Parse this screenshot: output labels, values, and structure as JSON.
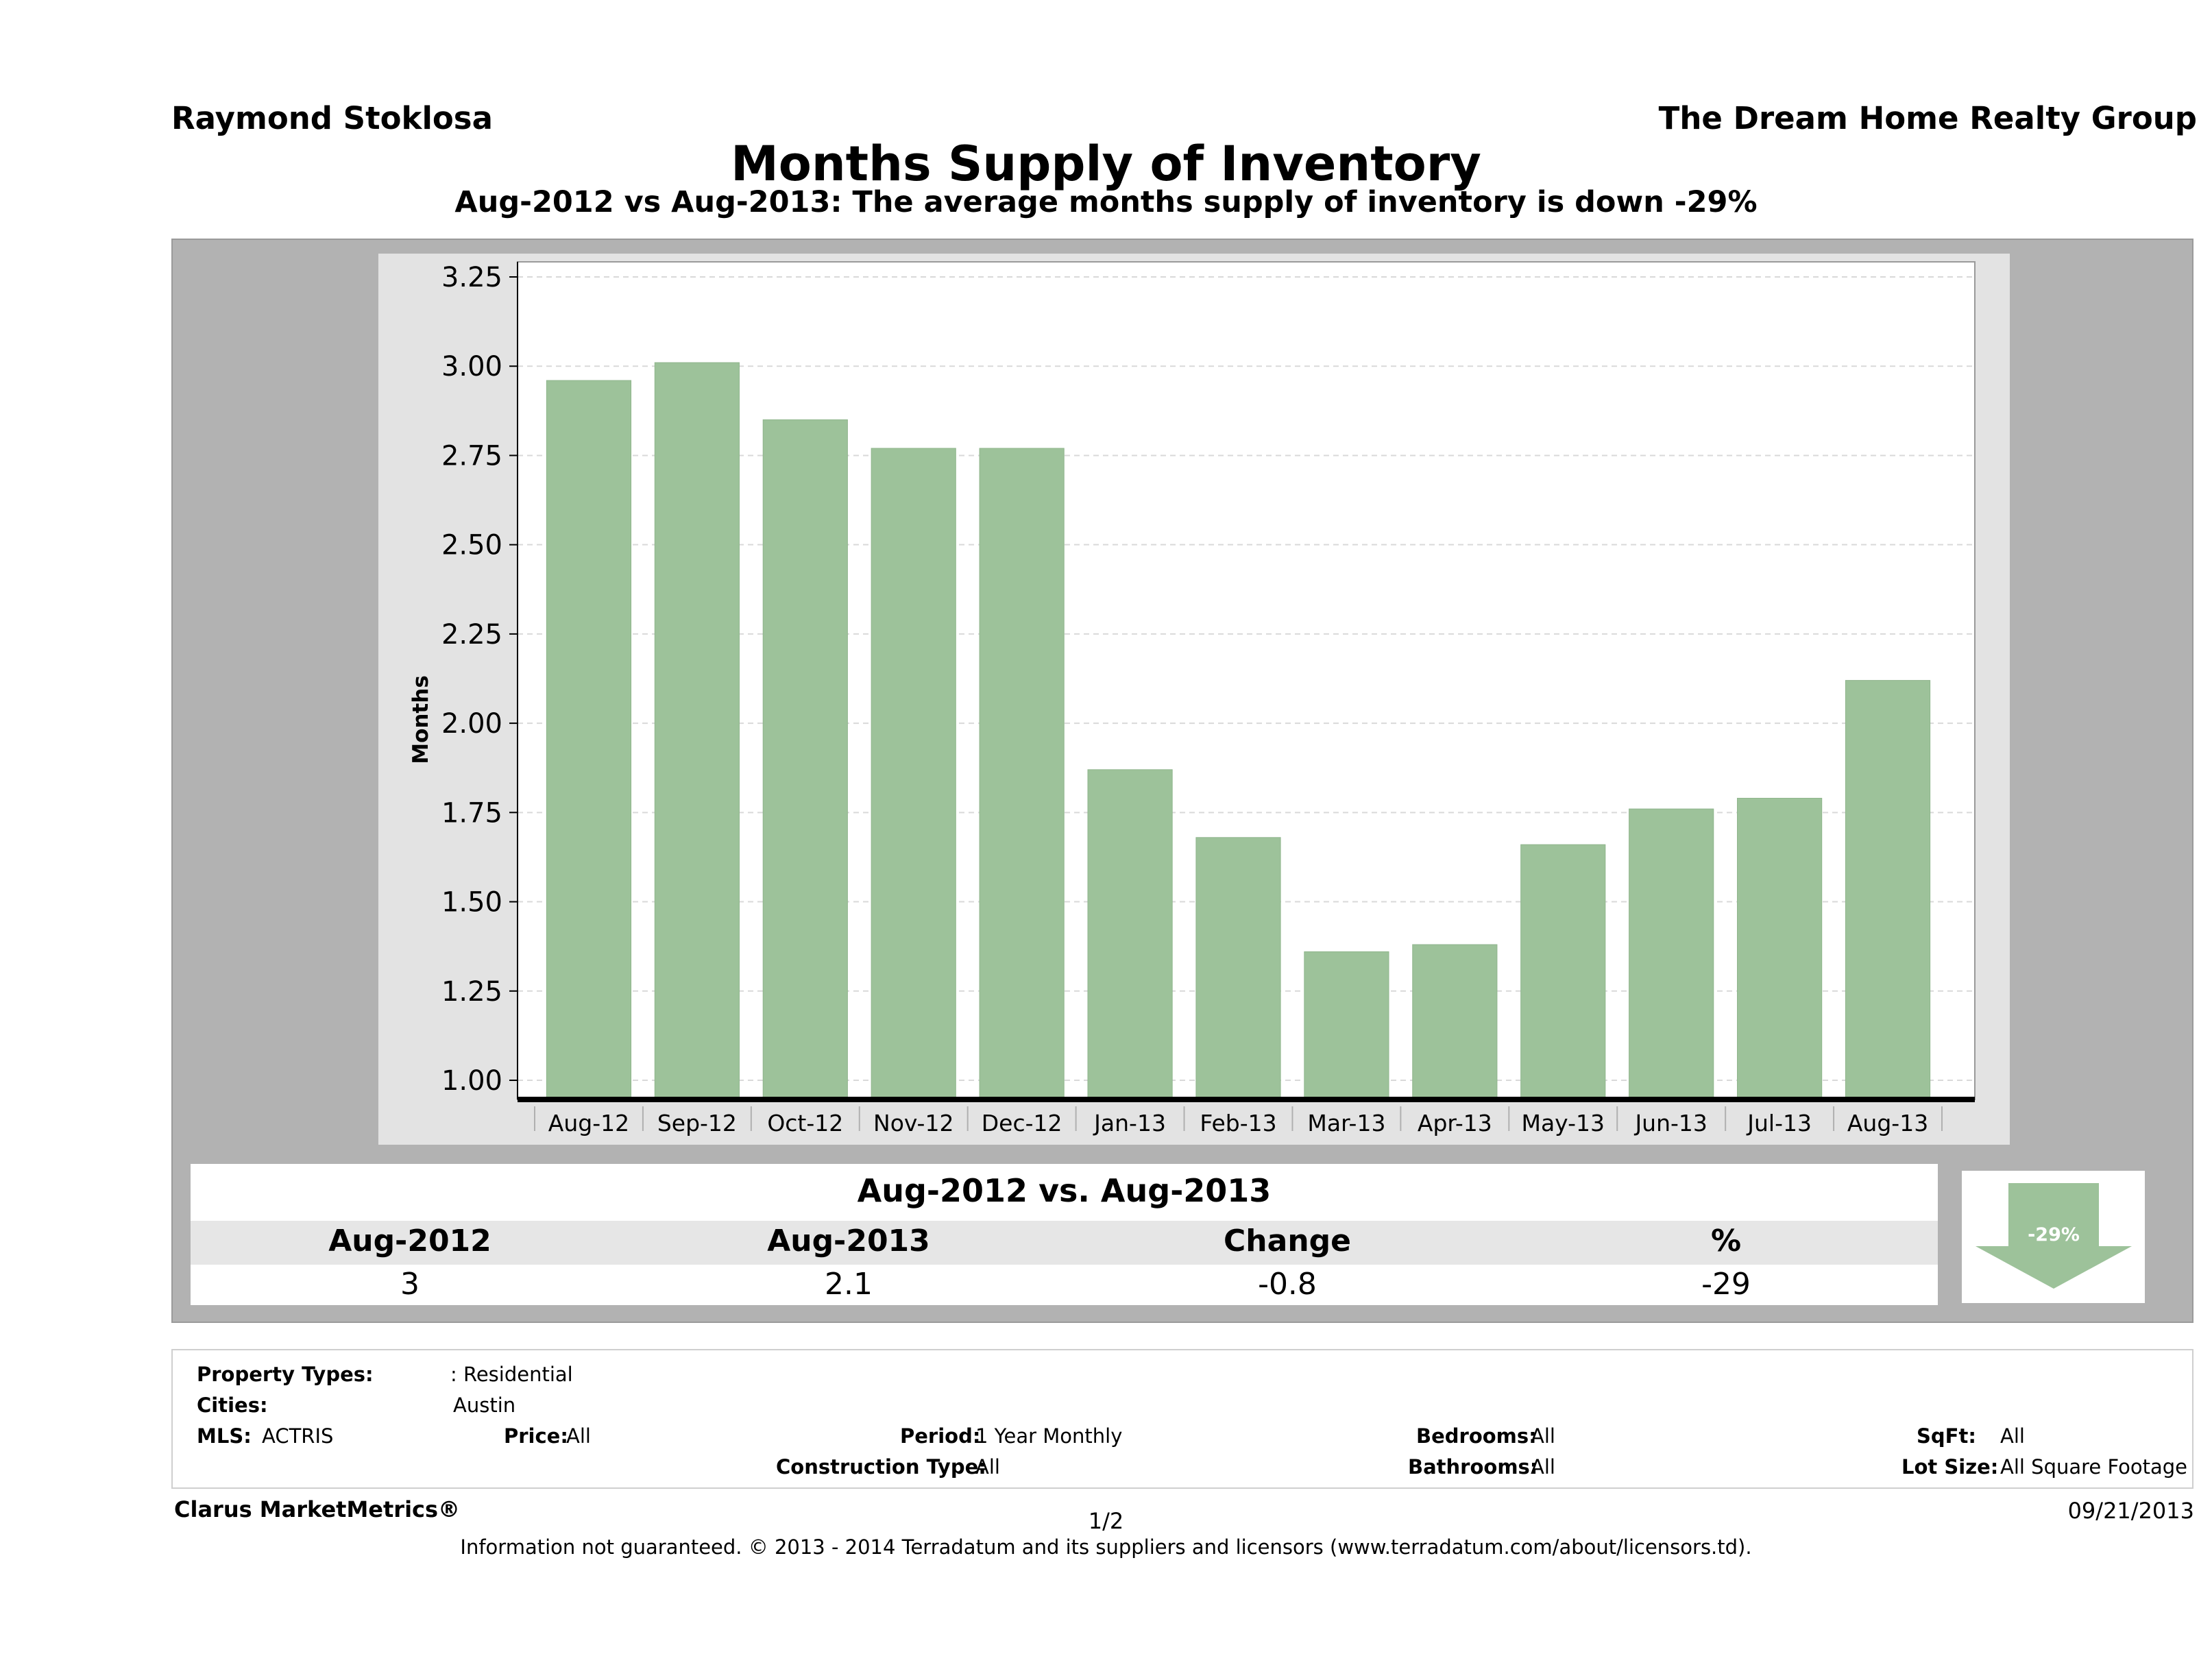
{
  "header": {
    "agent_name": "Raymond Stoklosa",
    "company": "The Dream Home Realty Group"
  },
  "chart_data": {
    "type": "bar",
    "title": "Months Supply of Inventory",
    "subtitle": "Aug-2012 vs Aug-2013: The average months supply of inventory is down -29%",
    "ylabel": "Months",
    "xlabel": "",
    "ylim": [
      0.95,
      3.35
    ],
    "yticks": [
      "1.00",
      "1.25",
      "1.50",
      "1.75",
      "2.00",
      "2.25",
      "2.50",
      "2.75",
      "3.00",
      "3.25"
    ],
    "categories": [
      "Aug-12",
      "Sep-12",
      "Oct-12",
      "Nov-12",
      "Dec-12",
      "Jan-13",
      "Feb-13",
      "Mar-13",
      "Apr-13",
      "May-13",
      "Jun-13",
      "Jul-13",
      "Aug-13"
    ],
    "values": [
      2.96,
      3.01,
      2.85,
      2.77,
      2.77,
      1.87,
      1.68,
      1.36,
      1.38,
      1.66,
      1.76,
      1.79,
      2.12
    ],
    "bar_color": "#9dc29a",
    "grid": true
  },
  "comparison": {
    "title": "Aug-2012 vs. Aug-2013",
    "headers": [
      "Aug-2012",
      "Aug-2013",
      "Change",
      "%"
    ],
    "values": [
      "3",
      "2.1",
      "-0.8",
      "-29"
    ],
    "badge": "-29%"
  },
  "filters": {
    "property_types_label": "Property Types:",
    "property_types_value": ": Residential",
    "cities_label": "Cities:",
    "cities_value": "Austin",
    "mls_label": "MLS:",
    "mls_value": "ACTRIS",
    "price_label": "Price:",
    "price_value": "All",
    "period_label": "Period:",
    "period_value": "1 Year Monthly",
    "bedrooms_label": "Bedrooms:",
    "bedrooms_value": "All",
    "sqft_label": "SqFt:",
    "sqft_value": "All",
    "construction_label": "Construction Type:",
    "construction_value": "All",
    "bathrooms_label": "Bathrooms:",
    "bathrooms_value": "All",
    "lotsize_label": "Lot Size:",
    "lotsize_value": "All Square Footage"
  },
  "footer": {
    "brand": "Clarus MarketMetrics®",
    "page": "1/2",
    "date": "09/21/2013",
    "disclaimer": "Information not guaranteed. © 2013 - 2014 Terradatum and its suppliers and licensors (www.terradatum.com/about/licensors.td)."
  }
}
